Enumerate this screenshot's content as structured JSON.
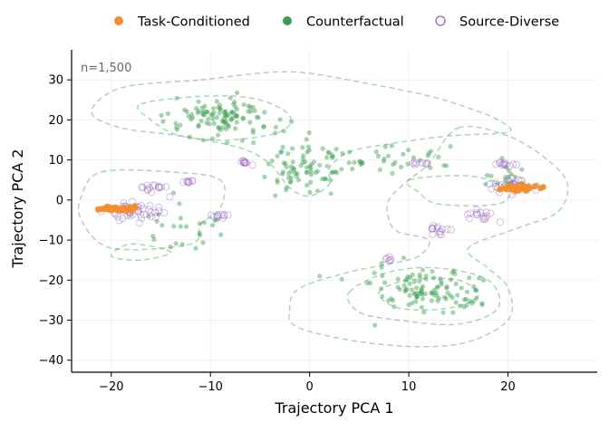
{
  "chart_data": {
    "type": "scatter",
    "title": "",
    "xlabel": "Trajectory PCA 1",
    "ylabel": "Trajectory PCA 2",
    "xlim": [
      -24,
      29
    ],
    "ylim": [
      -43,
      37.5
    ],
    "xticks": [
      -20,
      -10,
      0,
      10,
      20
    ],
    "yticks": [
      -40,
      -30,
      -20,
      -10,
      0,
      10,
      20,
      30
    ],
    "grid": true,
    "legend_position": "top-center",
    "annotation": "n=1,500",
    "series": [
      {
        "name": "Task-Conditioned",
        "color": "#f28e2b",
        "marker": "filled-circle",
        "clusters": [
          {
            "center": [
              -19.5,
              -2.2
            ],
            "spread": [
              1.5,
              0.4
            ],
            "n": 60
          },
          {
            "center": [
              20.8,
              3.0
            ],
            "spread": [
              1.6,
              0.5
            ],
            "n": 55
          }
        ]
      },
      {
        "name": "Counterfactual",
        "color": "#3a9e50",
        "marker": "filled-circle",
        "clusters": [
          {
            "center": [
              -9,
              20
            ],
            "spread": [
              5,
              5
            ],
            "n": 110
          },
          {
            "center": [
              0,
              8
            ],
            "spread": [
              3.5,
              6
            ],
            "n": 80
          },
          {
            "center": [
              12,
              -23
            ],
            "spread": [
              5,
              5
            ],
            "n": 110
          },
          {
            "center": [
              7,
              10
            ],
            "spread": [
              6,
              3
            ],
            "n": 35
          },
          {
            "center": [
              -13,
              -5
            ],
            "spread": [
              4,
              6
            ],
            "n": 25
          },
          {
            "center": [
              20,
              5
            ],
            "spread": [
              3,
              3
            ],
            "n": 20
          }
        ]
      },
      {
        "name": "Source-Diverse",
        "color": "#9467bd",
        "marker": "hollow-circle",
        "clusters": [
          {
            "center": [
              -17.5,
              -3
            ],
            "spread": [
              2.5,
              2.5
            ],
            "n": 45
          },
          {
            "center": [
              -15.5,
              3.0
            ],
            "spread": [
              1.2,
              0.8
            ],
            "n": 14
          },
          {
            "center": [
              -12,
              4.5
            ],
            "spread": [
              0.8,
              0.5
            ],
            "n": 8
          },
          {
            "center": [
              -9,
              -4
            ],
            "spread": [
              1.0,
              0.5
            ],
            "n": 10
          },
          {
            "center": [
              -6.5,
              9.5
            ],
            "spread": [
              0.8,
              0.6
            ],
            "n": 10
          },
          {
            "center": [
              11,
              9
            ],
            "spread": [
              0.8,
              0.5
            ],
            "n": 8
          },
          {
            "center": [
              8,
              -14.5
            ],
            "spread": [
              0.6,
              0.8
            ],
            "n": 6
          },
          {
            "center": [
              13,
              -7.5
            ],
            "spread": [
              1.2,
              1.2
            ],
            "n": 14
          },
          {
            "center": [
              17,
              -4
            ],
            "spread": [
              1.5,
              1.5
            ],
            "n": 16
          },
          {
            "center": [
              19.5,
              9
            ],
            "spread": [
              1.2,
              0.6
            ],
            "n": 12
          },
          {
            "center": [
              20.5,
              3.5
            ],
            "spread": [
              2.0,
              2.0
            ],
            "n": 35
          }
        ]
      }
    ],
    "contours": {
      "color": "#3a9e50",
      "style": "dashed",
      "levels": [
        [
          [
            -11,
            30
          ],
          [
            -2,
            32
          ],
          [
            6,
            29
          ],
          [
            12,
            26
          ],
          [
            16,
            23
          ],
          [
            19,
            20
          ],
          [
            20,
            17
          ],
          [
            14,
            16
          ],
          [
            8,
            14
          ],
          [
            4,
            12
          ],
          [
            2,
            8
          ],
          [
            2,
            4
          ],
          [
            0,
            1
          ],
          [
            -2,
            3
          ],
          [
            -4,
            9
          ],
          [
            -7,
            13
          ],
          [
            -13,
            16
          ],
          [
            -19,
            18
          ],
          [
            -22,
            22
          ],
          [
            -19,
            28
          ]
        ],
        [
          [
            -17,
            24
          ],
          [
            -10,
            26
          ],
          [
            -5,
            25
          ],
          [
            -2,
            21
          ],
          [
            -3,
            17
          ],
          [
            -8,
            15
          ],
          [
            -13,
            16
          ],
          [
            -16,
            20
          ]
        ],
        [
          [
            15,
            18
          ],
          [
            20,
            16
          ],
          [
            24,
            10
          ],
          [
            26,
            4
          ],
          [
            25,
            -3
          ],
          [
            21,
            -7
          ],
          [
            16,
            -12
          ],
          [
            18,
            -17
          ],
          [
            20,
            -22
          ],
          [
            20,
            -30
          ],
          [
            15,
            -36
          ],
          [
            7,
            -36
          ],
          [
            -1,
            -32
          ],
          [
            -2,
            -27
          ],
          [
            -1,
            -22
          ],
          [
            4,
            -18
          ],
          [
            8,
            -16
          ],
          [
            11,
            -14
          ],
          [
            12,
            -10
          ],
          [
            9,
            -8
          ],
          [
            8,
            -5
          ],
          [
            8,
            0
          ],
          [
            10,
            5
          ],
          [
            12,
            9
          ]
        ],
        [
          [
            4,
            -23
          ],
          [
            8,
            -18
          ],
          [
            13,
            -17
          ],
          [
            18,
            -20
          ],
          [
            19,
            -27
          ],
          [
            15,
            -31
          ],
          [
            9,
            -30
          ],
          [
            5,
            -28
          ]
        ],
        [
          [
            7,
            -23
          ],
          [
            10,
            -20
          ],
          [
            15,
            -20
          ],
          [
            17,
            -24
          ],
          [
            14,
            -27
          ],
          [
            9,
            -27
          ]
        ],
        [
          [
            -21,
            7
          ],
          [
            -14,
            7
          ],
          [
            -9,
            5
          ],
          [
            -9,
            -2
          ],
          [
            -11,
            -6
          ],
          [
            -12,
            -11
          ],
          [
            -20,
            -12
          ],
          [
            -23,
            -5
          ],
          [
            -23,
            1
          ]
        ],
        [
          [
            -18,
            -11
          ],
          [
            -14,
            -13
          ],
          [
            -17,
            -15
          ],
          [
            -20,
            -14
          ]
        ],
        [
          [
            10,
            5
          ],
          [
            16,
            6
          ],
          [
            20,
            3
          ],
          [
            19,
            -1
          ],
          [
            13,
            -1
          ],
          [
            11,
            2
          ]
        ]
      ]
    }
  }
}
